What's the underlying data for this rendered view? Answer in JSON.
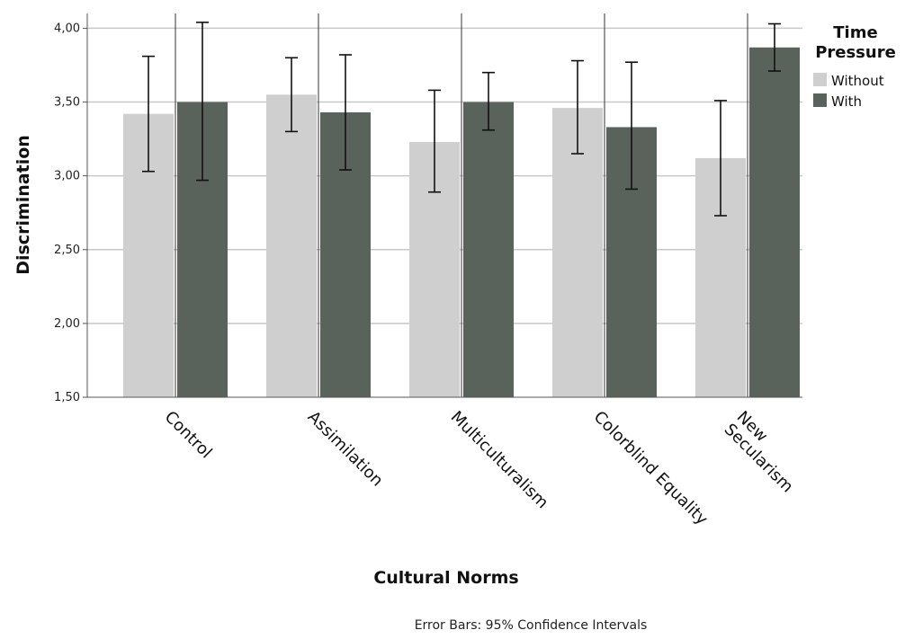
{
  "chart_data": {
    "type": "bar",
    "xlabel": "Cultural Norms",
    "ylabel": "Discrimination",
    "ylim": [
      1.5,
      4.1
    ],
    "yticks": [
      "1,50",
      "2,00",
      "2,50",
      "3,00",
      "3,50",
      "4,00"
    ],
    "ytick_values": [
      1.5,
      2.0,
      2.5,
      3.0,
      3.5,
      4.0
    ],
    "categories": [
      [
        "Control"
      ],
      [
        "Assimilation"
      ],
      [
        "Multiculturalism"
      ],
      [
        "Colorblind Equality"
      ],
      [
        "New",
        "Secularism"
      ]
    ],
    "legend_title": [
      "Time",
      "Pressure"
    ],
    "legend_position": "top-right",
    "grid": "horizontal",
    "footnote": "Error Bars: 95% Confidence Intervals",
    "series": [
      {
        "name": "Without",
        "color": "#cfcfcf",
        "values": [
          3.42,
          3.55,
          3.23,
          3.46,
          3.12
        ],
        "ci_low": [
          3.03,
          3.3,
          2.89,
          3.15,
          2.73
        ],
        "ci_high": [
          3.81,
          3.8,
          3.58,
          3.78,
          3.51
        ]
      },
      {
        "name": "With",
        "color": "#5a625c",
        "values": [
          3.5,
          3.43,
          3.5,
          3.33,
          3.87
        ],
        "ci_low": [
          2.97,
          3.04,
          3.31,
          2.91,
          3.71
        ],
        "ci_high": [
          4.04,
          3.82,
          3.7,
          3.77,
          4.03
        ]
      }
    ]
  }
}
